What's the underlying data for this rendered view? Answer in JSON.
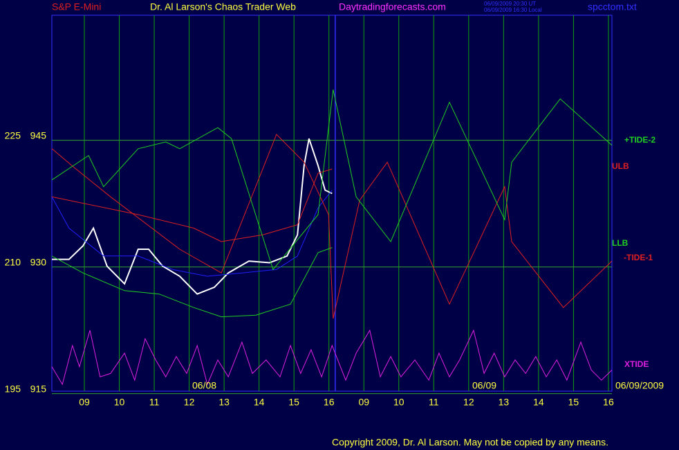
{
  "header": {
    "symbol": "S&P E-Mini",
    "title": "Dr. Al Larson's Chaos Trader Web",
    "site": "Daytradingforecasts.com",
    "time_ut": "06/09/2009 20:30 UT",
    "time_local": "06/09/2009 16:30 Local",
    "file": "spcctom.txt"
  },
  "chart_data": {
    "type": "line",
    "xlim": [
      0.07,
      16.1
    ],
    "xticks": [
      {
        "value": 1,
        "label": "09"
      },
      {
        "value": 2,
        "label": "10"
      },
      {
        "value": 3,
        "label": "11"
      },
      {
        "value": 4,
        "label": "12"
      },
      {
        "value": 5,
        "label": "13"
      },
      {
        "value": 6,
        "label": "14"
      },
      {
        "value": 7,
        "label": "15"
      },
      {
        "value": 8,
        "label": "16"
      },
      {
        "value": 9,
        "label": "09"
      },
      {
        "value": 10,
        "label": "10"
      },
      {
        "value": 11,
        "label": "11"
      },
      {
        "value": 12,
        "label": "12"
      },
      {
        "value": 13,
        "label": "13"
      },
      {
        "value": 14,
        "label": "14"
      },
      {
        "value": 15,
        "label": "15"
      },
      {
        "value": 16,
        "label": "16"
      }
    ],
    "ylim": [
      915.3,
      959.8
    ],
    "yticks": [
      915,
      930,
      945
    ],
    "y2lim": [
      195.3,
      239.8
    ],
    "y2ticks": [
      195,
      210,
      225
    ],
    "vline": 8.18,
    "grid": true,
    "series": [
      {
        "color": "#ffffff",
        "x": [
          0.07,
          0.56,
          0.96,
          1.26,
          1.65,
          2.15,
          2.54,
          2.84,
          3.24,
          3.73,
          4.23,
          4.72,
          5.12,
          5.71,
          6.3,
          6.8,
          7.1,
          7.29,
          7.43,
          7.69,
          7.89,
          8.09
        ],
        "values": [
          930.9,
          930.9,
          932.5,
          934.6,
          930.1,
          928.0,
          932.1,
          932.1,
          930.1,
          928.9,
          926.8,
          927.6,
          929.3,
          930.7,
          930.5,
          931.3,
          933.8,
          942.0,
          945.2,
          942.0,
          939.1,
          938.7
        ]
      },
      {
        "color": "#2020ff",
        "x": [
          0.07,
          0.56,
          1.55,
          2.54,
          3.53,
          4.52,
          5.51,
          6.5,
          7.1,
          7.69,
          8.09
        ],
        "values": [
          938.3,
          934.6,
          931.3,
          931.3,
          929.7,
          928.9,
          929.3,
          929.7,
          931.3,
          937.0,
          939.1
        ]
      },
      {
        "name": "ULB",
        "color": "#e02020",
        "x": [
          0.07,
          2.54,
          4.13,
          4.92,
          6.1,
          7.1,
          7.69,
          8.09
        ],
        "values": [
          938.3,
          936.2,
          934.6,
          933.0,
          933.8,
          935.0,
          941.1,
          941.6
        ]
      },
      {
        "name": "LLB",
        "color": "#20d020",
        "x": [
          0.07,
          0.96,
          2.15,
          3.14,
          4.13,
          4.92,
          5.91,
          6.9,
          7.69,
          8.09
        ],
        "values": [
          931.3,
          929.3,
          927.2,
          926.8,
          925.2,
          924.1,
          924.3,
          925.6,
          931.7,
          932.3
        ]
      },
      {
        "name": "-TIDE-1",
        "color": "#e02020",
        "x": [
          0.07,
          0.76,
          1.75,
          3.73,
          4.92,
          6.5,
          7.29,
          7.99,
          8.12,
          8.88,
          9.67,
          11.45,
          13.03,
          13.23,
          14.71,
          16.1
        ],
        "values": [
          944.0,
          941.6,
          938.3,
          932.1,
          929.3,
          945.7,
          942.4,
          936.2,
          923.9,
          937.9,
          942.4,
          925.6,
          939.5,
          933.0,
          925.2,
          930.7
        ]
      },
      {
        "name": "+TIDE-2",
        "color": "#20d020",
        "x": [
          0.07,
          1.12,
          1.55,
          2.54,
          3.33,
          3.73,
          4.82,
          5.21,
          6.4,
          7.69,
          8.12,
          8.78,
          9.77,
          11.45,
          13.03,
          13.23,
          14.62,
          16.1
        ],
        "values": [
          940.3,
          943.2,
          939.5,
          944.0,
          944.8,
          944.0,
          946.5,
          945.2,
          929.7,
          936.2,
          951.0,
          938.3,
          933.0,
          949.5,
          935.6,
          942.4,
          949.9,
          944.4
        ]
      },
      {
        "name": "XTIDE",
        "color": "#e020e0",
        "x": [
          0.07,
          0.37,
          0.66,
          0.86,
          1.16,
          1.45,
          1.75,
          2.15,
          2.44,
          2.74,
          3.04,
          3.33,
          3.63,
          3.93,
          4.23,
          4.52,
          4.82,
          5.12,
          5.51,
          5.81,
          6.2,
          6.6,
          6.9,
          7.19,
          7.49,
          7.79,
          8.09,
          8.48,
          8.78,
          9.17,
          9.47,
          9.77,
          10.06,
          10.46,
          10.86,
          11.15,
          11.45,
          11.74,
          12.14,
          12.44,
          12.73,
          13.03,
          13.33,
          13.63,
          13.92,
          14.22,
          14.52,
          14.81,
          15.21,
          15.51,
          15.8,
          16.1
        ],
        "values": [
          918.2,
          916.1,
          920.7,
          918.2,
          922.5,
          917.0,
          917.4,
          919.8,
          916.6,
          921.5,
          919.0,
          917.0,
          919.4,
          917.4,
          920.7,
          916.1,
          919.0,
          917.0,
          921.1,
          917.4,
          919.0,
          917.0,
          920.7,
          917.4,
          920.2,
          917.0,
          920.7,
          916.6,
          919.8,
          922.5,
          917.0,
          919.4,
          917.0,
          919.0,
          916.6,
          919.8,
          917.0,
          919.0,
          922.5,
          917.4,
          919.8,
          917.0,
          919.0,
          917.4,
          919.4,
          917.0,
          919.0,
          916.6,
          921.1,
          917.8,
          916.6,
          917.8
        ]
      }
    ],
    "annotations": [
      "06/08",
      "06/09",
      "06/09/2009"
    ]
  },
  "footer": {
    "copyright": "Copyright 2009, Dr. Al Larson. May not be copied by any means."
  }
}
